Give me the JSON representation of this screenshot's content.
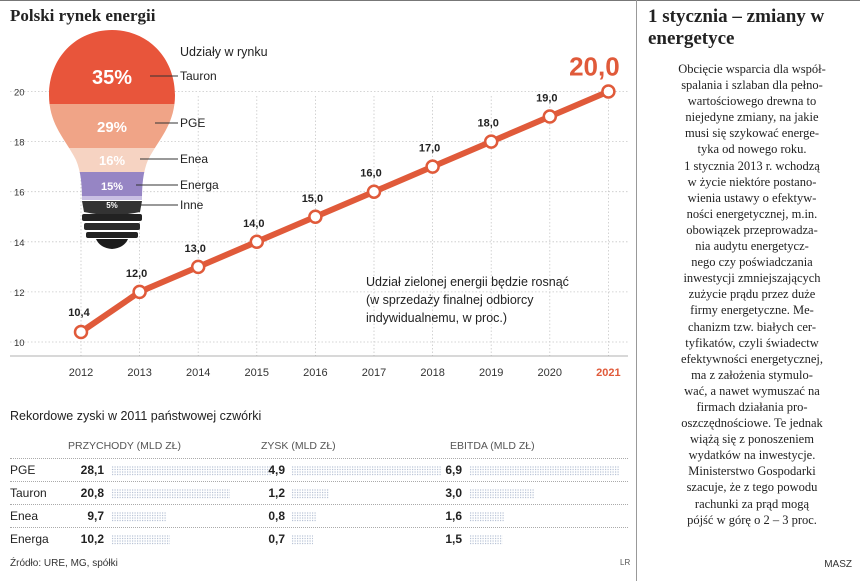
{
  "left_title": "Polski rynek energii",
  "right_title": "1 stycznia – zmiany w energetyce",
  "right_body_lines": [
    "Obcięcie wsparcia dla współ-",
    "spalania i szlaban dla pełno-",
    "wartościowego drewna to",
    "niejedyne zmiany, na jakie",
    "musi się szykować energe-",
    "tyka od nowego roku.",
    "1 stycznia 2013 r. wchodzą",
    "w życie niektóre postano-",
    "wienia ustawy o efektyw-",
    "ności energetycznej, m.in.",
    "obowiązek przeprowadza-",
    "nia audytu energetycz-",
    "nego czy poświadczania",
    "inwestycji zmniejszających",
    "zużycie prądu przez duże",
    "firmy energetyczne. Me-",
    "chanizm tzw. białych cer-",
    "tyfikatów, czyli świadectw",
    "efektywności energetycznej,",
    "ma z założenia stymulo-",
    "wać, a nawet wymuszać na",
    "firmach działania pro-",
    "oszczędnościowe. Te jednak",
    "wiążą się z ponoszeniem",
    "wydatków na inwestycje.",
    "Ministerstwo Gospodarki",
    "szacuje, że z tego powodu",
    "rachunki za prąd mogą",
    "pójść w górę o 2 – 3 proc."
  ],
  "author": "MASZ",
  "chart_data": [
    {
      "type": "line",
      "title": "Udział zielonej energii będzie rosnąć (w sprzedaży finalnej odbiorcy indywidualnemu, w proc.)",
      "title_lines": [
        "Udział zielonej energii będzie rosnąć",
        "(w sprzedaży finalnej odbiorcy",
        "indywidualnemu, w proc.)"
      ],
      "x": [
        "2012",
        "2013",
        "2014",
        "2015",
        "2016",
        "2017",
        "2018",
        "2019",
        "2020",
        "2021"
      ],
      "values": [
        10.4,
        12.0,
        13.0,
        14.0,
        15.0,
        16.0,
        17.0,
        18.0,
        19.0,
        20.0
      ],
      "value_labels": [
        "10,4",
        "12,0",
        "13,0",
        "14,0",
        "15,0",
        "16,0",
        "17,0",
        "18,0",
        "19,0",
        "20,0"
      ],
      "highlight_label": "20,0",
      "highlight_x": "2021",
      "y_ticks": [
        "10",
        "12",
        "14",
        "16",
        "18",
        "20"
      ],
      "ylim": [
        10,
        20
      ],
      "grid": true,
      "color": "#e05a3a"
    },
    {
      "type": "pie",
      "title": "Udziały w rynku",
      "categories": [
        "Tauron",
        "PGE",
        "Enea",
        "Energa",
        "Inne"
      ],
      "values": [
        35,
        29,
        16,
        15,
        5
      ],
      "value_labels": [
        "35%",
        "29%",
        "16%",
        "15%",
        "5%"
      ],
      "colors": [
        "#e8553b",
        "#f0a487",
        "#f6d3c2",
        "#9685c4",
        "#c9bfe3"
      ]
    },
    {
      "type": "table",
      "title": "Rekordowe zyski w 2011 państwowej czwórki",
      "columns": [
        "PRZYCHODY (MLD ZŁ)",
        "ZYSK (MLD ZŁ)",
        "EBITDA (MLD ZŁ)"
      ],
      "rows": [
        {
          "name": "PGE",
          "values": [
            "28,1",
            "4,9",
            "6,9"
          ],
          "num": [
            28.1,
            4.9,
            6.9
          ]
        },
        {
          "name": "Tauron",
          "values": [
            "20,8",
            "1,2",
            "3,0"
          ],
          "num": [
            20.8,
            1.2,
            3.0
          ]
        },
        {
          "name": "Enea",
          "values": [
            "9,7",
            "0,8",
            "1,6"
          ],
          "num": [
            9.7,
            0.8,
            1.6
          ]
        },
        {
          "name": "Energa",
          "values": [
            "10,2",
            "0,7",
            "1,5"
          ],
          "num": [
            10.2,
            0.7,
            1.5
          ]
        }
      ]
    }
  ],
  "source": "Źródło: URE, MG, spółki",
  "credit": "LR",
  "colors": {
    "accent": "#e05a3a",
    "bar": "#b9c3d6"
  }
}
